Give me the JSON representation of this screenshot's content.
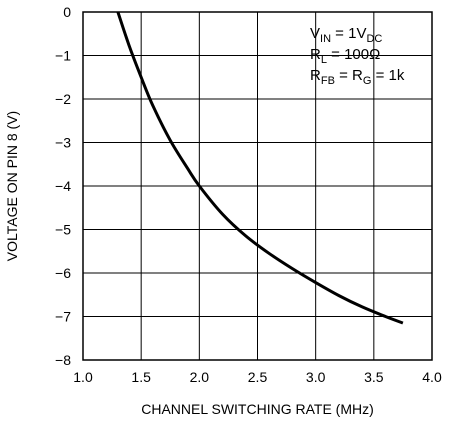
{
  "chart_data": {
    "type": "line",
    "xlabel": "CHANNEL SWITCHING RATE (MHz)",
    "ylabel": "VOLTAGE ON PIN 8 (V)",
    "xlim": [
      1.0,
      4.0
    ],
    "ylim": [
      -8,
      0
    ],
    "x_ticks": [
      "1.0",
      "1.5",
      "2.0",
      "2.5",
      "3.0",
      "3.5",
      "4.0"
    ],
    "y_ticks": [
      "0",
      "−1",
      "−2",
      "−3",
      "−4",
      "−5",
      "−6",
      "−7",
      "−8"
    ],
    "grid": true,
    "series": [
      {
        "x": [
          1.3,
          1.4,
          1.5,
          1.6,
          1.75,
          1.9,
          2.0,
          2.2,
          2.4,
          2.6,
          2.8,
          3.0,
          3.2,
          3.4,
          3.6,
          3.75
        ],
        "y": [
          0.0,
          -0.8,
          -1.5,
          -2.15,
          -2.95,
          -3.6,
          -4.0,
          -4.65,
          -5.15,
          -5.55,
          -5.9,
          -6.22,
          -6.52,
          -6.78,
          -7.0,
          -7.15
        ]
      }
    ],
    "conditions": [
      {
        "main": "V",
        "sub": "IN",
        "rest": " = 1V",
        "sub2": "DC"
      },
      {
        "main": "R",
        "sub": "L",
        "rest": " = 100Ω",
        "sub2": ""
      },
      {
        "main": "R",
        "sub": "FB",
        "rest": " = R",
        "sub2": "G",
        "tail": " = 1k"
      }
    ]
  }
}
